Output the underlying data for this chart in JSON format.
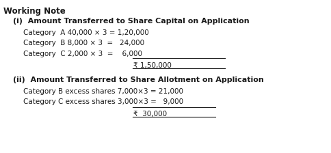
{
  "title": "Working Note",
  "section1_header": "(i)  Amount Transferred to Share Capital on Application",
  "section1_lines": [
    "Category  A 40,000 × 3 = 1,20,000",
    "Category  B 8,000 × 3  =   24,000",
    "Category  C 2,000 × 3  =    6,000"
  ],
  "section1_total": "₹ 1,50,000",
  "section2_header": "(ii)  Amount Transferred to Share Allotment on Application",
  "section2_lines": [
    "Category B excess shares 7,000×3 = 21,000",
    "Category C excess shares 3,000×3 =   9,000"
  ],
  "section2_total": "₹  30,000",
  "bg_color": "#ffffff",
  "text_color": "#1a1a1a",
  "font_size": 7.5,
  "title_font_size": 8.5,
  "header_font_size": 8.0
}
